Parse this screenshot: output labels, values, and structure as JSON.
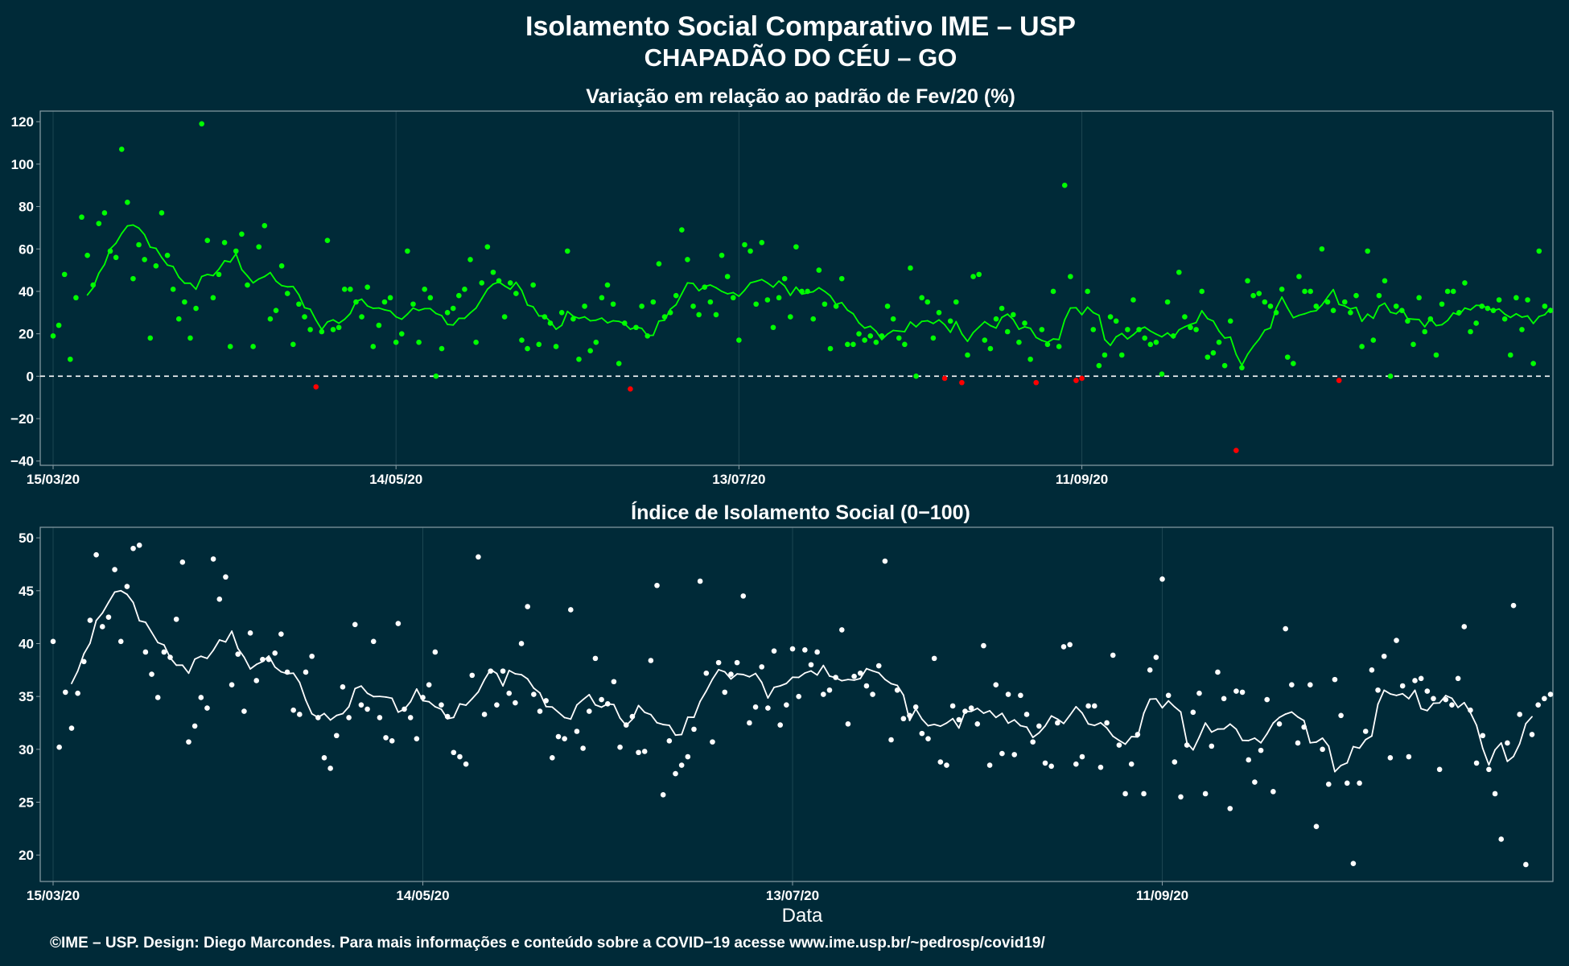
{
  "title_line1": "Isolamento Social Comparativo IME – USP",
  "title_line2": "CHAPADÃO DO CÉU – GO",
  "xlabel": "Data",
  "footer": "©IME – USP. Design: Diego Marcondes. Para mais informações e conteúdo sobre a COVID−19 acesse www.ime.usp.br/~pedrosp/covid19/",
  "colors": {
    "background": "#002a38",
    "panel_border": "#8a9ea6",
    "grid": "#1d4652",
    "positive": "#00ff00",
    "negative": "#ff0000",
    "index": "#ffffff"
  },
  "chart_data": [
    {
      "type": "scatter",
      "title": "Variação em relação ao padrão de Fev/20 (%)",
      "x_start": "2020-03-15",
      "x_ticks": [
        "15/03/20",
        "14/05/20",
        "13/07/20",
        "11/09/20"
      ],
      "y_ticks": [
        "120",
        "100",
        "80",
        "60",
        "40",
        "20",
        "0",
        "−20",
        "−40"
      ],
      "ylim": [
        -42,
        125
      ],
      "reference_line": 0,
      "smoothing": "7-day moving average line",
      "values": [
        19,
        24,
        48,
        8,
        37,
        75,
        57,
        43,
        72,
        77,
        59,
        56,
        107,
        82,
        46,
        62,
        55,
        18,
        52,
        77,
        57,
        41,
        27,
        35,
        18,
        32,
        119,
        64,
        37,
        48,
        63,
        14,
        59,
        67,
        43,
        14,
        61,
        71,
        27,
        31,
        52,
        39,
        15,
        34,
        28,
        22,
        -5,
        21,
        64,
        22,
        23,
        41,
        41,
        35,
        28,
        42,
        14,
        24,
        35,
        37,
        16,
        20,
        59,
        34,
        16,
        41,
        37,
        0,
        13,
        30,
        32,
        38,
        41,
        55,
        16,
        44,
        61,
        49,
        45,
        28,
        44,
        39,
        17,
        13,
        43,
        15,
        28,
        25,
        14,
        30,
        59,
        27,
        8,
        33,
        12,
        16,
        37,
        43,
        34,
        6,
        25,
        -6,
        23,
        33,
        19,
        35,
        53,
        28,
        30,
        38,
        69,
        55,
        33,
        29,
        42,
        35,
        29,
        57,
        47,
        37,
        17,
        62,
        59,
        34,
        63,
        36,
        23,
        37,
        46,
        28,
        61,
        40,
        40,
        27,
        50,
        34,
        13,
        33,
        46,
        15,
        15,
        20,
        17,
        19,
        16,
        19,
        33,
        27,
        18,
        15,
        51,
        0,
        37,
        35,
        18,
        30,
        -1,
        26,
        35,
        -3,
        10,
        47,
        48,
        17,
        13,
        27,
        32,
        21,
        29,
        16,
        25,
        8,
        -3,
        22,
        15,
        40,
        14,
        90,
        47,
        -2,
        -1,
        40,
        22,
        5,
        10,
        28,
        26,
        10,
        22,
        36,
        22,
        18,
        15,
        16,
        1,
        35,
        19,
        49,
        28,
        23,
        22,
        40,
        9,
        11,
        16,
        5,
        26,
        -35,
        4,
        45,
        38,
        39,
        35,
        33,
        30,
        41,
        9,
        6,
        47,
        40,
        40,
        33,
        60,
        35,
        31,
        -2,
        35,
        30,
        38,
        14,
        59,
        17,
        38,
        45,
        0,
        33,
        31,
        26,
        15,
        37,
        21,
        27,
        10,
        34,
        40,
        40,
        30,
        44,
        21,
        25,
        33,
        32,
        31,
        36,
        27,
        10,
        37,
        22,
        36,
        6,
        59,
        33,
        31
      ]
    },
    {
      "type": "scatter",
      "title": "Índice de Isolamento Social (0−100)",
      "x_start": "2020-03-15",
      "x_ticks": [
        "15/03/20",
        "14/05/20",
        "13/07/20",
        "11/09/20"
      ],
      "y_ticks": [
        "50",
        "45",
        "40",
        "35",
        "30",
        "25",
        "20"
      ],
      "ylim": [
        17.5,
        51
      ],
      "smoothing": "7-day moving average line",
      "values": [
        40.2,
        30.2,
        35.4,
        32.0,
        35.3,
        38.3,
        42.2,
        48.4,
        41.6,
        42.5,
        47.0,
        40.2,
        45.4,
        49.0,
        49.3,
        39.2,
        37.1,
        34.9,
        39.2,
        38.7,
        42.3,
        47.7,
        30.7,
        32.2,
        34.9,
        33.9,
        48.0,
        44.2,
        46.3,
        36.1,
        39.0,
        33.6,
        41.0,
        36.5,
        38.5,
        38.5,
        39.1,
        40.9,
        37.3,
        33.7,
        33.3,
        37.3,
        38.8,
        33.0,
        29.2,
        28.2,
        31.3,
        35.9,
        33.0,
        41.8,
        34.2,
        33.8,
        40.2,
        33.0,
        31.1,
        30.8,
        41.9,
        33.8,
        33.0,
        31.0,
        34.9,
        36.1,
        39.2,
        34.2,
        33.1,
        29.7,
        29.3,
        28.6,
        37.0,
        48.2,
        33.3,
        37.4,
        34.2,
        37.4,
        35.3,
        34.4,
        40.0,
        43.5,
        35.2,
        33.6,
        34.6,
        29.2,
        31.2,
        31.0,
        43.2,
        31.7,
        30.1,
        33.6,
        38.6,
        34.7,
        34.3,
        36.4,
        30.2,
        32.3,
        33.1,
        29.7,
        29.8,
        38.4,
        45.5,
        25.7,
        30.8,
        27.7,
        28.5,
        29.3,
        31.9,
        45.9,
        37.2,
        30.7,
        38.2,
        35.4,
        37.1,
        38.2,
        44.5,
        32.5,
        34.0,
        37.8,
        33.9,
        39.3,
        32.3,
        34.2,
        39.5,
        35.0,
        39.4,
        38.0,
        39.2,
        35.2,
        35.6,
        36.8,
        41.3,
        32.4,
        36.9,
        37.2,
        36.0,
        35.2,
        37.9,
        47.8,
        30.9,
        35.6,
        32.9,
        33.2,
        34.0,
        31.5,
        31.0,
        38.6,
        28.8,
        28.5,
        34.1,
        32.8,
        33.6,
        33.9,
        32.4,
        39.8,
        28.5,
        36.1,
        29.6,
        35.2,
        29.5,
        35.1,
        33.3,
        30.7,
        32.2,
        28.7,
        28.4,
        32.5,
        39.7,
        39.9,
        28.6,
        29.3,
        34.1,
        34.1,
        28.3,
        32.5,
        38.9,
        30.4,
        25.8,
        28.6,
        31.4,
        25.8,
        37.5,
        38.7,
        46.1,
        35.1,
        28.8,
        25.5,
        30.4,
        33.5,
        35.3,
        25.8,
        30.3,
        37.3,
        34.8,
        24.4,
        35.5,
        35.4,
        29.0,
        26.9,
        29.9,
        34.7,
        26.0,
        32.4,
        41.4,
        36.1,
        30.6,
        32.1,
        36.1,
        22.7,
        30.0,
        26.7,
        36.6,
        33.2,
        26.8,
        19.2,
        26.8,
        31.7,
        37.5,
        35.6,
        38.8,
        29.2,
        40.3,
        36.0,
        29.3,
        36.5,
        36.7,
        35.5,
        34.8,
        28.1,
        34.7,
        34.2,
        36.7,
        41.6,
        33.7,
        28.7,
        31.3,
        28.1,
        25.8,
        21.5,
        30.6,
        43.6,
        33.3,
        19.1,
        31.4,
        34.2,
        34.8,
        35.2
      ]
    }
  ]
}
